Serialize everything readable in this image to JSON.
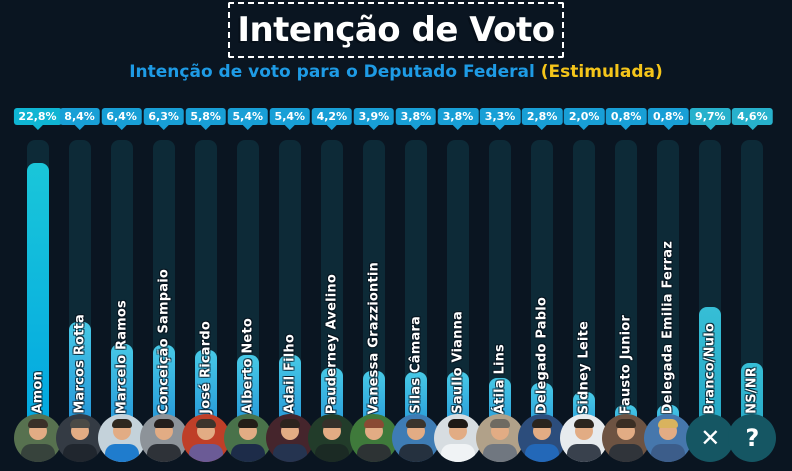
{
  "subtitle": {
    "main": "Intenção de voto para o Deputado Federal",
    "highlight": "(Estimulada)"
  },
  "chart_data": {
    "type": "bar",
    "title": "Intenção de Voto",
    "subtitle": "Intenção de voto para o Deputado Federal (Estimulada)",
    "unit": "%",
    "categories": [
      "Amon",
      "Marcos Rotta",
      "Marcelo Ramos",
      "Conceição Sampaio",
      "José Ricardo",
      "Alberto Neto",
      "Adail Filho",
      "Pauderney Avelino",
      "Vanessa Grazziontin",
      "Silas Câmara",
      "Saullo Vianna",
      "Átila Lins",
      "Delegado Pablo",
      "Sidney Leite",
      "Fausto Junior",
      "Delegada Emilia Ferraz",
      "Branco/Nulo",
      "NS/NR"
    ],
    "values": [
      22.8,
      8.4,
      6.4,
      6.3,
      5.8,
      5.4,
      5.4,
      4.2,
      3.9,
      3.8,
      3.8,
      3.3,
      2.8,
      2.0,
      0.8,
      0.8,
      9.7,
      4.6
    ],
    "value_labels": [
      "22,8%",
      "8,4%",
      "6,4%",
      "6,3%",
      "5,8%",
      "5,4%",
      "5,4%",
      "4,2%",
      "3,9%",
      "3,8%",
      "3,8%",
      "3,3%",
      "2,8%",
      "2,0%",
      "0,8%",
      "0,8%",
      "9,7%",
      "4,6%"
    ],
    "xlabel": "",
    "ylabel": "",
    "ylim": [
      0,
      25
    ],
    "grid": false,
    "legend": false
  },
  "colors": {
    "background": "#0a1521",
    "track": "#0d2a37",
    "title_text": "#ffffff",
    "subtitle_main": "#1e9be5",
    "subtitle_highlight": "#f5c51a",
    "name_text": "#ffffff",
    "neutral_avatar_bg": "#155663",
    "variants": {
      "amon": {
        "badge": "#0fb5d3",
        "bar_top": "#1ac6d9",
        "bar_bottom": "#00a5e2"
      },
      "default": {
        "badge": "#189fd6",
        "bar_top": "#47c9e6",
        "bar_bottom": "#1a87d4"
      },
      "neutral": {
        "badge": "#27b1cc",
        "bar_top": "#36bed6",
        "bar_bottom": "#23a3c2"
      }
    }
  },
  "candidates": [
    {
      "variant": "amon",
      "avatar": {
        "type": "photo",
        "bg": "#57714f",
        "clothes": "#37433c",
        "hair": "#3a3028"
      }
    },
    {
      "variant": "default",
      "avatar": {
        "type": "photo",
        "bg": "#343b44",
        "clothes": "#20262e",
        "hair": "#4a4a46"
      }
    },
    {
      "variant": "default",
      "avatar": {
        "type": "photo",
        "bg": "#c4d2da",
        "clothes": "#1f7ccd",
        "hair": "#2e2820"
      }
    },
    {
      "variant": "default",
      "avatar": {
        "type": "photo",
        "bg": "#8d9399",
        "clothes": "#2e3238",
        "hair": "#241e1c"
      }
    },
    {
      "variant": "default",
      "avatar": {
        "type": "photo",
        "bg": "#bf3f28",
        "clothes": "#6b5b96",
        "hair": "#3c342c"
      }
    },
    {
      "variant": "default",
      "avatar": {
        "type": "photo",
        "bg": "#49724a",
        "clothes": "#1d2c49",
        "hair": "#241e18"
      }
    },
    {
      "variant": "default",
      "avatar": {
        "type": "photo",
        "bg": "#45252c",
        "clothes": "#253450",
        "hair": "#2c241e"
      }
    },
    {
      "variant": "default",
      "avatar": {
        "type": "photo",
        "bg": "#223c2a",
        "clothes": "#1b2a24",
        "hair": "#35302a"
      }
    },
    {
      "variant": "default",
      "avatar": {
        "type": "photo",
        "bg": "#3f7a3b",
        "clothes": "#2d3334",
        "hair": "#8a4a34"
      }
    },
    {
      "variant": "default",
      "avatar": {
        "type": "photo",
        "bg": "#3e7cb4",
        "clothes": "#25313f",
        "hair": "#3a342c"
      }
    },
    {
      "variant": "default",
      "avatar": {
        "type": "photo",
        "bg": "#d7dde1",
        "clothes": "#f0f3f5",
        "hair": "#1f1a16"
      }
    },
    {
      "variant": "default",
      "avatar": {
        "type": "photo",
        "bg": "#b1a189",
        "clothes": "#707780",
        "hair": "#6e6a62"
      }
    },
    {
      "variant": "default",
      "avatar": {
        "type": "photo",
        "bg": "#2c4d7c",
        "clothes": "#2368b8",
        "hair": "#2a241e"
      }
    },
    {
      "variant": "default",
      "avatar": {
        "type": "photo",
        "bg": "#e7ebee",
        "clothes": "#39414d",
        "hair": "#2c261f"
      }
    },
    {
      "variant": "default",
      "avatar": {
        "type": "photo",
        "bg": "#6d5342",
        "clothes": "#30343a",
        "hair": "#3a2e24"
      }
    },
    {
      "variant": "default",
      "avatar": {
        "type": "photo",
        "bg": "#4677ac",
        "clothes": "#3c5d8a",
        "hair": "#d9b35e"
      }
    },
    {
      "variant": "neutral",
      "avatar": {
        "type": "icon",
        "glyph": "✕",
        "icon_name": "x-icon"
      }
    },
    {
      "variant": "neutral",
      "avatar": {
        "type": "icon",
        "glyph": "?",
        "icon_name": "question-icon"
      }
    }
  ]
}
